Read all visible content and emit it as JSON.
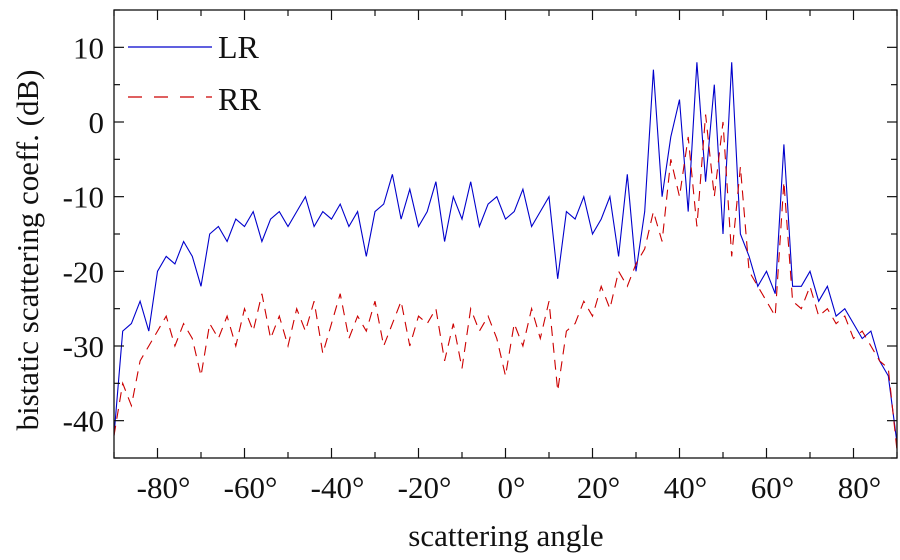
{
  "chart_data": {
    "type": "line",
    "title": "",
    "xlabel": "scattering angle",
    "ylabel": "bistatic scattering coeff. (dB)",
    "xlim": [
      -90,
      90
    ],
    "ylim": [
      -45,
      15
    ],
    "xticks": [
      -80,
      -60,
      -40,
      -20,
      0,
      20,
      40,
      60,
      80
    ],
    "xtick_labels": [
      "-80°",
      "-60°",
      "-40°",
      "-20°",
      "0°",
      "20°",
      "40°",
      "60°",
      "80°"
    ],
    "yticks": [
      10,
      0,
      -10,
      -20,
      -30,
      -40
    ],
    "ytick_labels": [
      "10",
      "0",
      "-10",
      "-20",
      "-30",
      "-40"
    ],
    "grid": false,
    "legend_position": "top-left",
    "x": [
      -90,
      -88,
      -86,
      -84,
      -82,
      -80,
      -78,
      -76,
      -74,
      -72,
      -70,
      -68,
      -66,
      -64,
      -62,
      -60,
      -58,
      -56,
      -54,
      -52,
      -50,
      -48,
      -46,
      -44,
      -42,
      -40,
      -38,
      -36,
      -34,
      -32,
      -30,
      -28,
      -26,
      -24,
      -22,
      -20,
      -18,
      -16,
      -14,
      -12,
      -10,
      -8,
      -6,
      -4,
      -2,
      0,
      2,
      4,
      6,
      8,
      10,
      12,
      14,
      16,
      18,
      20,
      22,
      24,
      26,
      28,
      30,
      32,
      34,
      36,
      38,
      40,
      42,
      44,
      46,
      48,
      50,
      52,
      54,
      56,
      58,
      60,
      62,
      64,
      66,
      68,
      70,
      72,
      74,
      76,
      78,
      80,
      82,
      84,
      86,
      88,
      90
    ],
    "series": [
      {
        "name": "LR",
        "color": "#0000cc",
        "style": "solid",
        "values": [
          -42,
          -28,
          -27,
          -24,
          -28,
          -20,
          -18,
          -19,
          -16,
          -18,
          -22,
          -15,
          -14,
          -16,
          -13,
          -14,
          -12,
          -16,
          -13,
          -12,
          -14,
          -12,
          -10,
          -14,
          -12,
          -13,
          -11,
          -14,
          -12,
          -18,
          -12,
          -11,
          -7,
          -13,
          -9,
          -14,
          -12,
          -8,
          -16,
          -10,
          -13,
          -8,
          -14,
          -11,
          -10,
          -13,
          -12,
          -9,
          -14,
          -12,
          -10,
          -21,
          -12,
          -13,
          -10,
          -15,
          -13,
          -10,
          -18,
          -7,
          -20,
          -12,
          7,
          -10,
          -2,
          3,
          -12,
          8,
          -8,
          5,
          -15,
          8,
          -15,
          -18,
          -22,
          -20,
          -23,
          -3,
          -22,
          -22,
          -20,
          -24,
          -22,
          -26,
          -25,
          -27,
          -29,
          -28,
          -32,
          -34,
          -43
        ]
      },
      {
        "name": "RR",
        "color": "#cc0000",
        "style": "dashed",
        "values": [
          -42,
          -35,
          -38,
          -32,
          -30,
          -28,
          -26,
          -30,
          -27,
          -29,
          -34,
          -27,
          -29,
          -26,
          -30,
          -25,
          -28,
          -23,
          -29,
          -26,
          -30,
          -25,
          -28,
          -24,
          -31,
          -27,
          -23,
          -29,
          -26,
          -28,
          -24,
          -30,
          -27,
          -24,
          -30,
          -26,
          -27,
          -25,
          -32,
          -27,
          -33,
          -25,
          -28,
          -26,
          -29,
          -34,
          -27,
          -30,
          -25,
          -29,
          -24,
          -36,
          -28,
          -27,
          -24,
          -26,
          -22,
          -25,
          -20,
          -22,
          -19,
          -17,
          -12,
          -16,
          -5,
          -10,
          -2,
          -14,
          1,
          -10,
          0,
          -18,
          -6,
          -20,
          -22,
          -24,
          -26,
          -8,
          -24,
          -25,
          -22,
          -26,
          -25,
          -27,
          -26,
          -29,
          -28,
          -30,
          -32,
          -33,
          -44
        ]
      }
    ]
  }
}
